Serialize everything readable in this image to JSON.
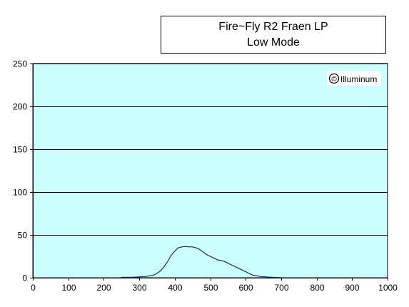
{
  "chart_data": {
    "type": "line",
    "title": "Fire~Fly R2 Fraen LP",
    "subtitle": "Low Mode",
    "annotation": "Illuminum",
    "annotation_symbol": "©",
    "xlabel": "",
    "ylabel": "",
    "xlim": [
      0,
      1000
    ],
    "ylim": [
      0,
      250
    ],
    "xticks": [
      0,
      100,
      200,
      300,
      400,
      500,
      600,
      700,
      800,
      900,
      1000
    ],
    "yticks": [
      0,
      50,
      100,
      150,
      200,
      250
    ],
    "grid": "horizontal",
    "legend": "none",
    "colors": {
      "plot_background": "#ccffff",
      "line": "#1f2a6b",
      "grid": "#000000"
    },
    "series": [
      {
        "x": [
          250,
          280,
          300,
          320,
          340,
          350,
          360,
          370,
          380,
          390,
          400,
          410,
          420,
          430,
          440,
          450,
          460,
          470,
          480,
          490,
          500,
          510,
          520,
          530,
          540,
          550,
          560,
          570,
          580,
          590,
          600,
          610,
          620,
          640,
          660,
          680,
          700
        ],
        "values": [
          0.5,
          0.5,
          1,
          1.5,
          3,
          5,
          8,
          13,
          19,
          26,
          31,
          35,
          36,
          36.5,
          36,
          36,
          35,
          33,
          30,
          27,
          25,
          23,
          21,
          20,
          19,
          17,
          15,
          13,
          11,
          9,
          7,
          5,
          3,
          1.5,
          0.8,
          0.4,
          0.2
        ]
      }
    ]
  }
}
